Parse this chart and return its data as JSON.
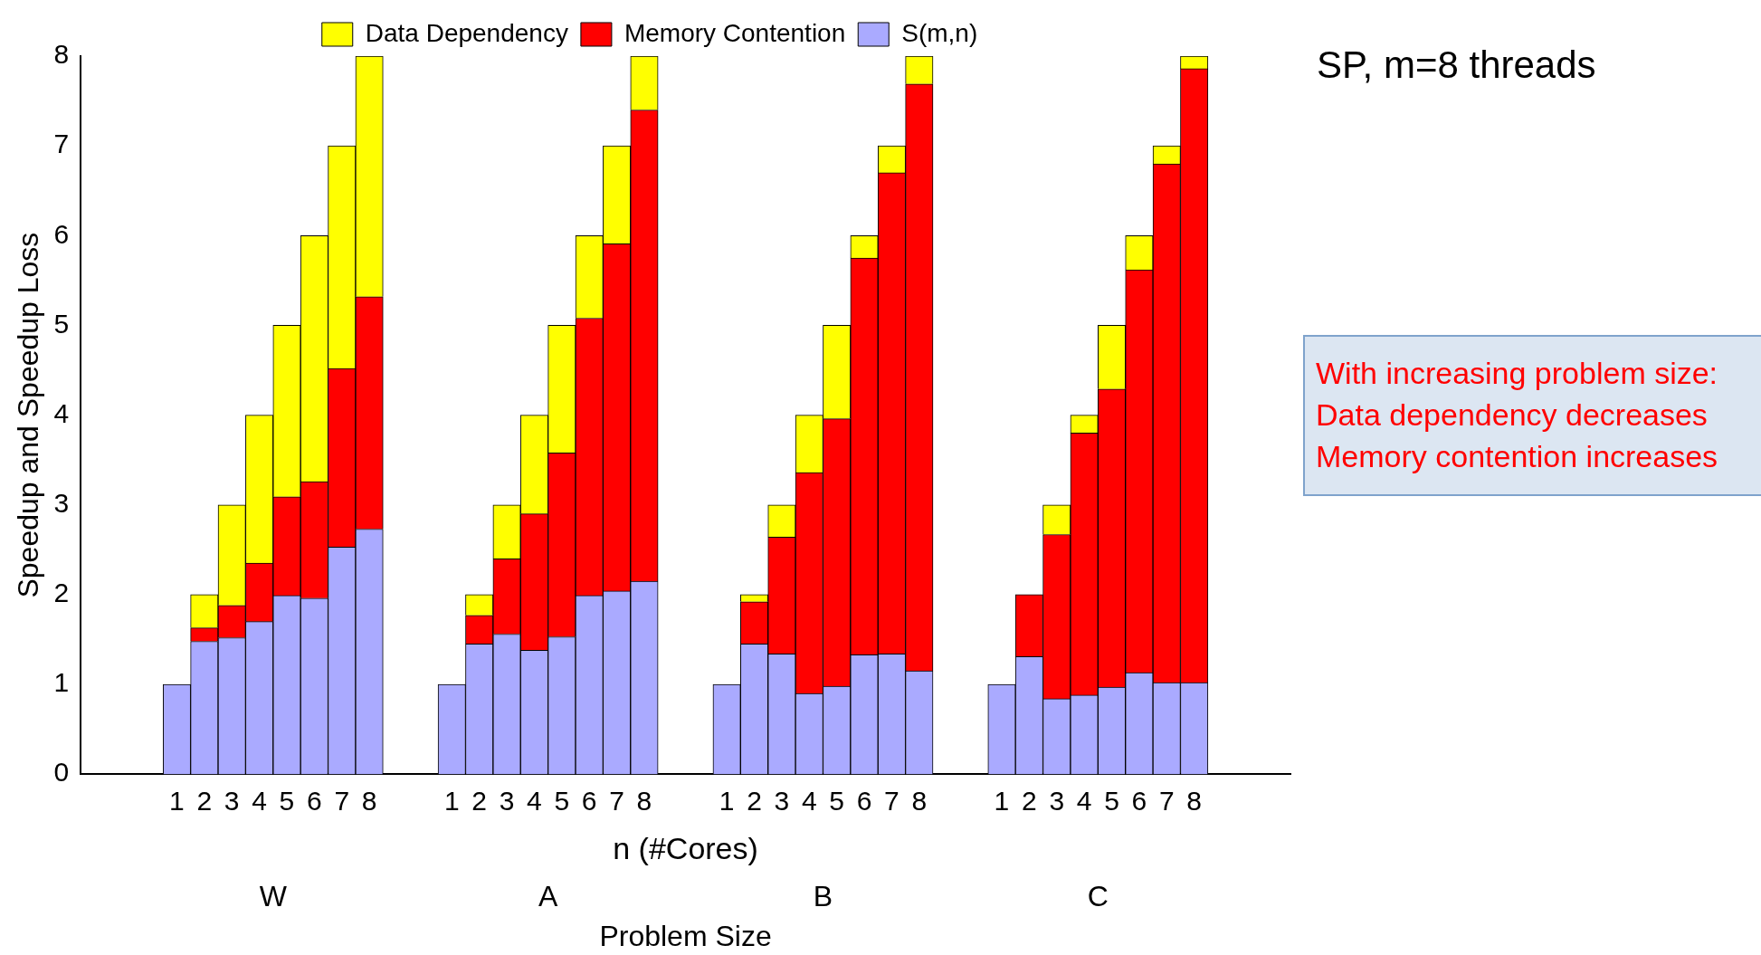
{
  "chart_data": {
    "type": "bar",
    "title": "SP, m=8 threads",
    "xlabel": "n (#Cores)",
    "ylabel": "Speedup and Speedup Loss",
    "categories": [
      null,
      null,
      null,
      "1",
      "2",
      "3",
      "4",
      "5",
      "6",
      "7",
      "8",
      null,
      null,
      "1",
      "2",
      "3",
      "4",
      "5",
      "6",
      "7",
      "8",
      null,
      null,
      "1",
      "2",
      "3",
      "4",
      "5",
      "6",
      "7",
      "8",
      null,
      null,
      "1",
      "2",
      "3",
      "4",
      "5",
      "6",
      "7",
      "8",
      null,
      null,
      null
    ],
    "stacked": true,
    "legend": "top",
    "ylim": [
      0,
      8
    ],
    "yticks": [
      0,
      1,
      2,
      3,
      4,
      5,
      6,
      7,
      8
    ],
    "series": [
      {
        "name": "S(m,n)",
        "color": "#aaaaff",
        "values": [
          null,
          null,
          null,
          1,
          1.48,
          1.52,
          1.7,
          1.99,
          1.96,
          2.53,
          2.73,
          null,
          null,
          1,
          1.45,
          1.56,
          1.38,
          1.53,
          1.99,
          2.04,
          2.15,
          null,
          null,
          1,
          1.45,
          1.34,
          0.9,
          0.98,
          1.33,
          1.34,
          1.15,
          null,
          null,
          1,
          1.31,
          0.84,
          0.88,
          0.97,
          1.13,
          1.02,
          1.02,
          null,
          null,
          null
        ]
      },
      {
        "name": "Memory Contention",
        "color": "#ff0000",
        "values": [
          null,
          null,
          null,
          0,
          0.15,
          0.36,
          0.65,
          1.1,
          1.3,
          1.99,
          2.59,
          null,
          null,
          0,
          0.32,
          0.84,
          1.52,
          2.05,
          3.09,
          3.87,
          5.25,
          null,
          null,
          0,
          0.47,
          1.3,
          2.46,
          2.98,
          4.42,
          5.36,
          6.54,
          null,
          null,
          0,
          0.69,
          1.83,
          2.92,
          3.32,
          4.49,
          5.78,
          6.84,
          null,
          null,
          null
        ]
      },
      {
        "name": "Data Dependency",
        "color": "#ffff00",
        "values": [
          null,
          null,
          null,
          0,
          0.37,
          1.12,
          1.65,
          1.91,
          2.74,
          2.48,
          2.68,
          null,
          null,
          0,
          0.23,
          0.6,
          1.1,
          1.42,
          0.92,
          1.09,
          0.6,
          null,
          null,
          0,
          0.08,
          0.36,
          0.64,
          1.04,
          0.25,
          0.3,
          0.31,
          null,
          null,
          0,
          0,
          0.33,
          0.2,
          0.71,
          0.38,
          0.2,
          0.14,
          null,
          null,
          null
        ]
      }
    ],
    "annotations": [
      "W",
      "A",
      "B",
      "C",
      "Problem Size",
      "With increasing problem size:",
      "Data dependency decreases",
      "Memory contention increases"
    ]
  }
}
